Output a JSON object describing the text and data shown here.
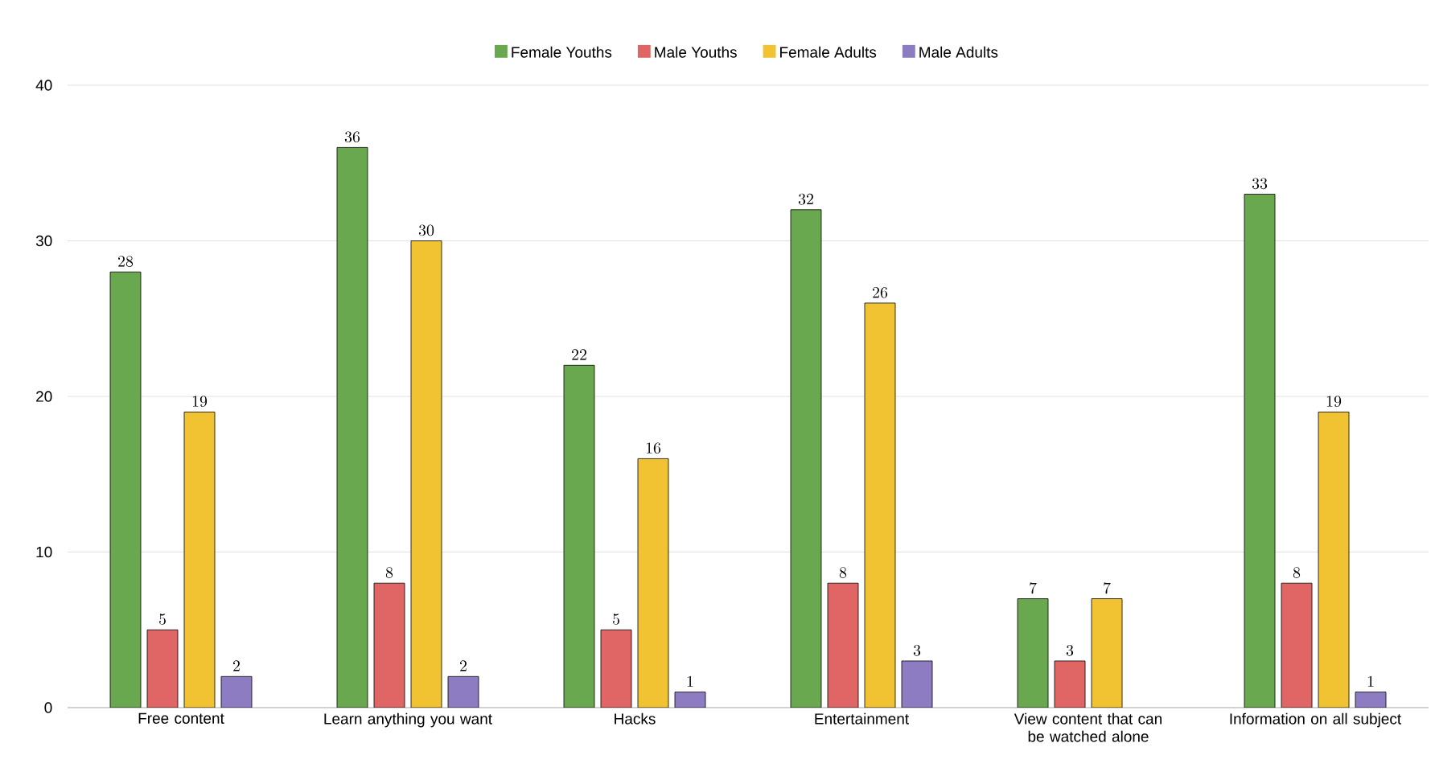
{
  "chart_data": {
    "type": "bar",
    "categories": [
      "Free content",
      "Learn anything you want",
      "Hacks",
      "Entertainment",
      "View content that can be watched alone",
      "Information on all subject"
    ],
    "series": [
      {
        "name": "Female Youths",
        "color": "#6aa84f",
        "values": [
          28,
          36,
          22,
          32,
          7,
          33
        ]
      },
      {
        "name": "Male Youths",
        "color": "#e06666",
        "values": [
          5,
          8,
          5,
          8,
          3,
          8
        ]
      },
      {
        "name": "Female Adults",
        "color": "#f1c232",
        "values": [
          19,
          30,
          16,
          26,
          7,
          19
        ]
      },
      {
        "name": "Male Adults",
        "color": "#8e7cc3",
        "values": [
          2,
          2,
          1,
          3,
          null,
          1
        ]
      }
    ],
    "ylim": [
      0,
      40
    ],
    "yticks": [
      0,
      10,
      20,
      30,
      40
    ],
    "grid": "y",
    "legend": "top",
    "data_labels": true
  }
}
